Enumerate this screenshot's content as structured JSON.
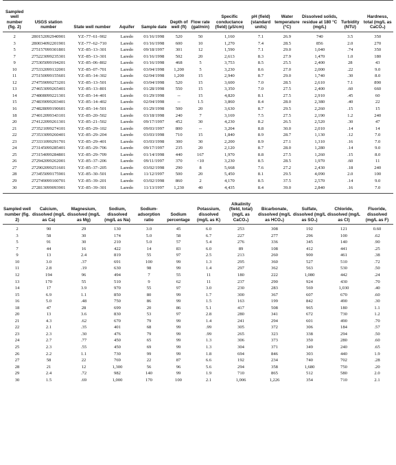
{
  "table1": {
    "headers": [
      "Sampled well number (fig. 2)",
      "USGS station number",
      "State well number",
      "Aquifer",
      "Sample date",
      "Depth of well (ft)",
      "Flow rate (gal/min)",
      "Specific conductance (field) (µS/cm)",
      "pH (field) (standard units)",
      "Water temperature (°C)",
      "Dissolved solids, residue at 180 °C (mg/L)",
      "Turbidity (NTU)",
      "Hardness, total (mg/L as CaCO₃)"
    ],
    "rows": [
      [
        "2",
        "280152092940901",
        "YZ–77–61–902",
        "Laredo",
        "01/16/1998",
        "520",
        "50",
        "1,160",
        "7.1",
        "26.9",
        "740",
        "3.5",
        "350"
      ],
      [
        "3",
        "280034092201901",
        "YZ–77–62–710",
        "Laredo",
        "01/16/1998",
        "600",
        "10",
        "1,270",
        "7.4",
        "28.5",
        "856",
        "2.0",
        "270"
      ],
      [
        "5",
        "275157099301801",
        "YZ–85–13–301",
        "Laredo",
        "09/18/1997",
        "301",
        "12",
        "1,590",
        "7.1",
        "29.0",
        "1,040",
        ".74",
        "350"
      ],
      [
        "7",
        "275223099235301",
        "YZ–85–13–301",
        "Laredo",
        "01/16/1998",
        "502",
        "20",
        "2,613",
        "8.3",
        "27.9",
        "1,470",
        "1.0",
        "180"
      ],
      [
        "9",
        "275305099194201",
        "YZ–85–06–802",
        "Laredo",
        "01/16/1998",
        "468",
        "5",
        "3,753",
        "8.5",
        "25.5",
        "2,400",
        "28",
        "43"
      ],
      [
        "10",
        "275332099132001",
        "YZ–85–07–701",
        "Laredo",
        "03/04/1998",
        "1,200",
        "5",
        "3,230",
        "8.6",
        "27.0",
        "2,000",
        ".22",
        "9.0"
      ],
      [
        "11",
        "275150099155601",
        "YZ–85–14–302",
        "Laredo",
        "02/04/1998",
        "1,200",
        "15",
        "2,940",
        "8.7",
        "29.0",
        "1,740",
        ".30",
        "8.0"
      ],
      [
        "12",
        "274759099273201",
        "YZ–85–13–501",
        "Laredo",
        "03/04/1998",
        "520",
        "15",
        "3,600",
        "7.0",
        "28.5",
        "2,610",
        "7.1",
        "890"
      ],
      [
        "13",
        "274653099265401",
        "YZ–85–13–801",
        "Laredo",
        "01/28/1998",
        "550",
        "15",
        "3,350",
        "7.0",
        "27.5",
        "2,400",
        ".60",
        "660"
      ],
      [
        "14",
        "274808099221301",
        "YZ–85–14–401",
        "Laredo",
        "01/29/1998",
        "--",
        "15",
        "4,820",
        "8.1",
        "27.5",
        "2,910",
        ".45",
        "60"
      ],
      [
        "15",
        "274839099203401",
        "YZ–85–14–402",
        "Laredo",
        "02/04/1998",
        "--",
        "1.5",
        "3,860",
        "8.4",
        "28.0",
        "2,380",
        ".40",
        "22"
      ],
      [
        "16",
        "274828099190601",
        "YZ–85–14–501",
        "Laredo",
        "01/29/1998",
        "500",
        "20",
        "3,630",
        "8.7",
        "29.5",
        "2,260",
        ".15",
        "15"
      ],
      [
        "18",
        "274012099343101",
        "YZ–85–20–502",
        "Laredo",
        "03/18/1998",
        "240",
        "7",
        "3,169",
        "7.5",
        "27.5",
        "2,190",
        "1.2",
        "240"
      ],
      [
        "20",
        "274122099261301",
        "YZ–85–21–502",
        "Laredo",
        "09/17/1997",
        "452",
        "30",
        "4,230",
        "8.2",
        "26.5",
        "2,520",
        ".30",
        "47"
      ],
      [
        "21",
        "273521099274101",
        "YZ–85–29–102",
        "Laredo",
        "09/03/1997",
        "800",
        "--",
        "3,204",
        "8.8",
        "30.0",
        "2,010",
        ".14",
        "14"
      ],
      [
        "22",
        "273533099260401",
        "YZ–85–29–204",
        "Laredo",
        "03/03/1998",
        "710",
        "15",
        "1,840",
        "8.9",
        "28.7",
        "1,130",
        ".12",
        "7.0"
      ],
      [
        "23",
        "273331099291701",
        "YZ–85–29–401",
        "Laredo",
        "03/03/1998",
        "300",
        "30",
        "2,200",
        "8.9",
        "27.1",
        "1,310",
        ".16",
        "7.0"
      ],
      [
        "24",
        "273145099285401",
        "YZ–85–29–706",
        "Laredo",
        "09/17/1997",
        "235",
        "20",
        "2,120",
        "8.7",
        "28.0",
        "1,280",
        ".14",
        "9.0"
      ],
      [
        "25",
        "273154099284801",
        "YZ–85–29–709",
        "Laredo",
        "01/14/1998",
        "440",
        "167",
        "1,970",
        "8.8",
        "27.5",
        "1,260",
        ".15",
        "8.0"
      ],
      [
        "26",
        "272942099262001",
        "YZ–85–37–206",
        "Laredo",
        "09/11/1997",
        "370",
        "<10",
        "3,230",
        "8.5",
        "28.5",
        "1,970",
        ".60",
        "11"
      ],
      [
        "27",
        "272902099251601",
        "YZ–85–37–205",
        "Laredo",
        "03/02/1998",
        "290",
        "8",
        "5,668",
        "7.6",
        "27.2",
        "2,430",
        ".18",
        "240"
      ],
      [
        "28",
        "273455099175901",
        "YZ–85–30–501",
        "Laredo",
        "11/12/1997",
        "500",
        "20",
        "5,450",
        "8.1",
        "29.5",
        "4,090",
        "2.0",
        "100"
      ],
      [
        "29",
        "272749099100701",
        "YZ–85–39–201",
        "Laredo",
        "03/02/1998",
        "860",
        "2",
        "4,170",
        "8.5",
        "37.5",
        "2,570",
        ".14",
        "9.0"
      ],
      [
        "30",
        "272813099093901",
        "YZ–85–39–301",
        "Laredo",
        "11/13/1997",
        "1,230",
        "40",
        "4,435",
        "8.4",
        "39.0",
        "2,840",
        ".16",
        "7.0"
      ]
    ]
  },
  "table2": {
    "headers": [
      "Sampled well number (fig. 2)",
      "Calcium, dissolved (mg/L as Ca)",
      "Magnesium, dissolved (mg/L as Mg)",
      "Sodium, dissolved (mg/L as Na)",
      "Sodium-adsorption ratio",
      "Sodium percentage",
      "Potassium, dissolved (mg/L as K)",
      "Alkalinity (field, total) (mg/L as CaCO₃)",
      "Bicarbonate, dissolved (mg/L as HCO₃)",
      "Sulfate, dissolved (mg/L as SO₄)",
      "Chloride, dissolved (mg/L as Cl)",
      "Fluoride, dissolved (mg/L as F)"
    ],
    "rows": [
      [
        "2",
        "90",
        "29",
        "130",
        "3.0",
        "45",
        "6.0",
        "253",
        "308",
        "192",
        "121",
        "0.60"
      ],
      [
        "3",
        "58",
        "30",
        "174",
        "5.0",
        "58",
        "6.7",
        "227",
        "277",
        "296",
        "100",
        ".62"
      ],
      [
        "5",
        "91",
        "30",
        "210",
        "5.0",
        "57",
        "5.4",
        "276",
        "336",
        "345",
        "140",
        ".90"
      ],
      [
        "7",
        "44",
        "16",
        "422",
        "14",
        "83",
        "6.0",
        "89",
        "108",
        "412",
        "441",
        ".25"
      ],
      [
        "9",
        "13",
        "2.4",
        "819",
        "55",
        "97",
        "2.5",
        "213",
        "260",
        "900",
        "461",
        ".38"
      ],
      [
        "10",
        "3.0",
        ".37",
        "691",
        "100",
        "99",
        "1.3",
        "295",
        "360",
        "527",
        "510",
        ".72"
      ],
      [
        "11",
        "2.8",
        ".19",
        "630",
        "98",
        "99",
        "1.4",
        "297",
        "362",
        "563",
        "530",
        ".50"
      ],
      [
        "12",
        "194",
        "96",
        "494",
        "7",
        "55",
        "11",
        "180",
        "222",
        "1,080",
        "442",
        ".24"
      ],
      [
        "13",
        "170",
        "55",
        "510",
        "9",
        "62",
        "11",
        "237",
        "290",
        "924",
        "430",
        ".70"
      ],
      [
        "14",
        "17",
        "3.9",
        "970",
        "55",
        "97",
        "3.0",
        "230",
        "283",
        "569",
        "1,030",
        ".40"
      ],
      [
        "15",
        "6.9",
        "1.1",
        "850",
        "80",
        "99",
        "1.7",
        "300",
        "367",
        "607",
        "670",
        ".60"
      ],
      [
        "16",
        "5.0",
        ".48",
        "750",
        "86",
        "99",
        "1.5",
        "163",
        "199",
        "842",
        "490",
        ".30"
      ],
      [
        "18",
        "47",
        "28",
        "699",
        "20",
        "86",
        "5.1",
        "417",
        "508",
        "965",
        "180",
        "1.1"
      ],
      [
        "20",
        "13",
        "3.6",
        "830",
        "53",
        "97",
        "2.8",
        "280",
        "341",
        "672",
        "730",
        "1.2"
      ],
      [
        "21",
        "4.3",
        ".62",
        "670",
        "79",
        "99",
        "1.4",
        "241",
        "294",
        "601",
        "490",
        ".70"
      ],
      [
        "22",
        "2.1",
        ".35",
        "401",
        "68",
        "99",
        ".99",
        "305",
        "372",
        "306",
        "184",
        ".57"
      ],
      [
        "23",
        "2.3",
        ".30",
        "476",
        "79",
        "99",
        ".99",
        "265",
        "323",
        "338",
        "294",
        ".50"
      ],
      [
        "24",
        "2.7",
        ".77",
        "450",
        "65",
        "99",
        "1.3",
        "306",
        "373",
        "350",
        "280",
        ".60"
      ],
      [
        "25",
        "2.3",
        ".55",
        "450",
        "69",
        "99",
        "1.3",
        "304",
        "371",
        "349",
        "240",
        ".65"
      ],
      [
        "26",
        "2.2",
        "1.1",
        "730",
        "99",
        "99",
        "1.8",
        "694",
        "846",
        "303",
        "440",
        "1.9"
      ],
      [
        "27",
        "58",
        "22",
        "769",
        "22",
        "87",
        "6.6",
        "192",
        "234",
        "740",
        "702",
        ".28"
      ],
      [
        "28",
        "21",
        "12",
        "1,300",
        "56",
        "96",
        "5.6",
        "294",
        "358",
        "1,680",
        "750",
        ".20"
      ],
      [
        "29",
        "2.4",
        ".72",
        "982",
        "140",
        "99",
        "1.9",
        "710",
        "865",
        "512",
        "580",
        "2.0"
      ],
      [
        "30",
        "1.5",
        ".69",
        "1,000",
        "170",
        "100",
        "2.1",
        "1,006",
        "1,226",
        "354",
        "710",
        "2.1"
      ]
    ]
  }
}
